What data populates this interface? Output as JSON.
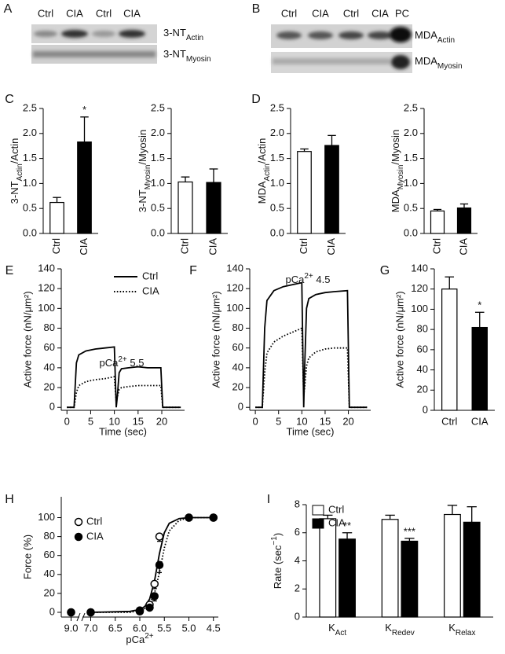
{
  "blots": [
    {
      "panel": "A",
      "lanes": [
        "Ctrl",
        "CIA",
        "Ctrl",
        "CIA"
      ],
      "rows": [
        [
          {
            "text": "3-NT"
          },
          {
            "text": "Actin",
            "shift": "sub"
          }
        ],
        [
          {
            "text": "3-NT"
          },
          {
            "text": "Myosin",
            "shift": "sub"
          }
        ]
      ]
    },
    {
      "panel": "B",
      "lanes": [
        "Ctrl",
        "CIA",
        "Ctrl",
        "CIA",
        "PC"
      ],
      "rows": [
        [
          {
            "text": "MDA"
          },
          {
            "text": "Actin",
            "shift": "sub"
          }
        ],
        [
          {
            "text": "MDA"
          },
          {
            "text": "Myosin",
            "shift": "sub"
          }
        ]
      ]
    }
  ],
  "chart_data": [
    {
      "type": "bar",
      "panel": "C",
      "ylabel": [
        {
          "text": "3-NT"
        },
        {
          "text": "Actin",
          "shift": "sub"
        },
        {
          "text": "/Actin"
        }
      ],
      "categories": [
        "Ctrl",
        "CIA"
      ],
      "values": [
        0.62,
        1.83
      ],
      "errors": [
        0.1,
        0.5
      ],
      "colors": [
        "#ffffff",
        "#000000"
      ],
      "annotations": [
        {
          "index": 1,
          "text": "*"
        }
      ],
      "ylim": [
        0,
        2.5
      ],
      "yticks": [
        {
          "value": 0,
          "label": "0.0"
        },
        0.5,
        {
          "value": 1,
          "label": "1.0"
        },
        1.5,
        {
          "value": 2,
          "label": "2.0"
        },
        2.5
      ]
    },
    {
      "type": "bar",
      "ylabel": [
        {
          "text": "3-NT"
        },
        {
          "text": "Myosin",
          "shift": "sub"
        },
        {
          "text": "/Myosin"
        }
      ],
      "categories": [
        "Ctrl",
        "CIA"
      ],
      "values": [
        1.03,
        1.02
      ],
      "errors": [
        0.1,
        0.27
      ],
      "colors": [
        "#ffffff",
        "#000000"
      ],
      "ylim": [
        0,
        2.5
      ],
      "yticks": [
        {
          "value": 0,
          "label": "0.0"
        },
        0.5,
        {
          "value": 1,
          "label": "1.0"
        },
        1.5,
        {
          "value": 2,
          "label": "2.0"
        },
        2.5
      ]
    },
    {
      "type": "bar",
      "panel": "D",
      "ylabel": [
        {
          "text": "MDA"
        },
        {
          "text": "Actin",
          "shift": "sub"
        },
        {
          "text": "/Actin"
        }
      ],
      "categories": [
        "Ctrl",
        "CIA"
      ],
      "values": [
        1.64,
        1.76
      ],
      "errors": [
        0.05,
        0.2
      ],
      "colors": [
        "#ffffff",
        "#000000"
      ],
      "ylim": [
        0,
        2.5
      ],
      "yticks": [
        {
          "value": 0,
          "label": "0.0"
        },
        0.5,
        {
          "value": 1,
          "label": "1.0"
        },
        1.5,
        {
          "value": 2,
          "label": "2.0"
        },
        2.5
      ]
    },
    {
      "type": "bar",
      "ylabel": [
        {
          "text": "MDA"
        },
        {
          "text": "Myosin",
          "shift": "sub"
        },
        {
          "text": "/Myosin"
        }
      ],
      "categories": [
        "Ctrl",
        "CIA"
      ],
      "values": [
        0.45,
        0.51
      ],
      "errors": [
        0.03,
        0.08
      ],
      "colors": [
        "#ffffff",
        "#000000"
      ],
      "ylim": [
        0,
        2.5
      ],
      "yticks": [
        {
          "value": 0,
          "label": "0.0"
        },
        0.5,
        {
          "value": 1,
          "label": "1.0"
        },
        1.5,
        {
          "value": 2,
          "label": "2.0"
        },
        2.5
      ]
    },
    {
      "type": "line",
      "panel": "E",
      "ylabel": "Active force (nN/μm²)",
      "xlabel": "Time (sec)",
      "annotation": [
        {
          "text": "pCa"
        },
        {
          "text": "2+",
          "shift": "super"
        },
        {
          "text": " 5.5"
        }
      ],
      "legend": true,
      "x": [
        0,
        1.5,
        2,
        2.5,
        4,
        6,
        8,
        10,
        10.4,
        10.6,
        11,
        11.5,
        13,
        15,
        17,
        19.8,
        20.2,
        22,
        24
      ],
      "series": [
        {
          "name": "Ctrl",
          "color": "#000000",
          "dash": "solid",
          "values": [
            0,
            0,
            45,
            53,
            57,
            59,
            60,
            61,
            0,
            10,
            35,
            39,
            40,
            41,
            40,
            40,
            0,
            0,
            0
          ]
        },
        {
          "name": "CIA",
          "color": "#000000",
          "dash": "dotted",
          "values": [
            0,
            0,
            15,
            22,
            26,
            28,
            29,
            31,
            5,
            10,
            18,
            20,
            21,
            22,
            22,
            22,
            0,
            0,
            0
          ]
        }
      ],
      "xlim": [
        -1.2,
        24.8
      ],
      "xticks": [
        0,
        5,
        10,
        15,
        20
      ],
      "ylim": [
        -3,
        140
      ],
      "yticks": [
        0,
        20,
        40,
        60,
        80,
        100,
        120,
        140
      ]
    },
    {
      "type": "line",
      "panel": "F",
      "ylabel": "Active force (nN/μm²)",
      "xlabel": "Time (sec)",
      "annotation": [
        {
          "text": "pCa"
        },
        {
          "text": "2+",
          "shift": "super"
        },
        {
          "text": " 4.5"
        }
      ],
      "x": [
        0,
        1.5,
        2,
        2.5,
        4,
        6,
        8,
        10,
        10.4,
        10.6,
        11,
        11.5,
        13,
        15,
        17,
        19.8,
        20.2,
        22,
        24
      ],
      "series": [
        {
          "color": "#000000",
          "dash": "solid",
          "values": [
            0,
            0,
            80,
            108,
            118,
            122,
            124,
            126,
            0,
            40,
            100,
            110,
            114,
            116,
            117,
            118,
            0,
            0,
            0
          ]
        },
        {
          "color": "#000000",
          "dash": "dotted",
          "values": [
            0,
            0,
            35,
            55,
            66,
            72,
            76,
            80,
            12,
            20,
            42,
            50,
            56,
            59,
            60,
            60,
            0,
            0,
            0
          ]
        }
      ],
      "xlim": [
        -1.2,
        24.8
      ],
      "xticks": [
        0,
        5,
        10,
        15,
        20
      ],
      "ylim": [
        -3,
        140
      ],
      "yticks": [
        0,
        20,
        40,
        60,
        80,
        100,
        120,
        140
      ]
    },
    {
      "type": "bar",
      "panel": "G",
      "ylabel": "Active force (nN/μm²)",
      "categories": [
        "Ctrl",
        "CIA"
      ],
      "values": [
        120,
        82
      ],
      "errors": [
        12,
        15
      ],
      "colors": [
        "#ffffff",
        "#000000"
      ],
      "annotations": [
        {
          "index": 1,
          "text": "*"
        }
      ],
      "ylim": [
        0,
        140
      ],
      "yticks": [
        0,
        20,
        40,
        60,
        80,
        100,
        120,
        140
      ]
    },
    {
      "type": "scatter",
      "panel": "H",
      "ylabel": "Force (%)",
      "xlabel": [
        {
          "text": "pCa"
        },
        {
          "text": "2+",
          "shift": "super"
        }
      ],
      "legend": true,
      "series": [
        {
          "name": "Ctrl",
          "color": "#000000",
          "marker": "open",
          "x": [
            9,
            7,
            6,
            5.8,
            5.7,
            5.6,
            5,
            4.5
          ],
          "values": [
            0,
            0,
            2,
            8,
            30,
            80,
            100,
            100
          ],
          "errors": [
            0,
            0,
            1,
            3,
            5,
            5,
            0,
            0
          ]
        },
        {
          "name": "CIA",
          "color": "#000000",
          "marker": "filled",
          "x": [
            9,
            7,
            6,
            5.8,
            5.7,
            5.6,
            5,
            4.5
          ],
          "values": [
            0,
            0,
            1,
            5,
            17,
            50,
            100,
            100
          ],
          "errors": [
            0,
            0,
            1,
            3,
            5,
            8,
            0,
            0
          ]
        }
      ],
      "fits": [
        {
          "dash": "solid",
          "x": [
            7,
            6.2,
            6,
            5.9,
            5.8,
            5.7,
            5.6,
            5.5,
            5.4,
            5.2,
            5,
            4.5
          ],
          "values": [
            0,
            1,
            3,
            6,
            14,
            33,
            62,
            84,
            94,
            99,
            100,
            100
          ]
        },
        {
          "dash": "dotted",
          "x": [
            7,
            6.2,
            6,
            5.9,
            5.8,
            5.7,
            5.6,
            5.5,
            5.4,
            5.2,
            5,
            4.5
          ],
          "values": [
            0,
            0,
            2,
            4,
            9,
            20,
            42,
            68,
            86,
            97,
            100,
            100
          ]
        }
      ],
      "xlim": [
        9.2,
        4.4
      ],
      "x_break": [
        8.8,
        7.2
      ],
      "xticks": [
        {
          "value": 9,
          "label": "9.0"
        },
        {
          "value": 7,
          "label": "7.0"
        },
        6.5,
        {
          "value": 6,
          "label": "6.0"
        },
        5.5,
        {
          "value": 5,
          "label": "5.0"
        },
        4.5
      ],
      "ylim": [
        -5,
        122
      ],
      "yticks": [
        0,
        20,
        40,
        60,
        80,
        100
      ]
    },
    {
      "type": "bar",
      "panel": "I",
      "ylabel": [
        {
          "text": "Rate (sec"
        },
        {
          "text": "−1",
          "shift": "super"
        },
        {
          "text": ")"
        }
      ],
      "legend": true,
      "categories": [
        [
          {
            "text": "K"
          },
          {
            "text": "Act",
            "shift": "sub"
          }
        ],
        [
          {
            "text": "K"
          },
          {
            "text": "Redev",
            "shift": "sub"
          }
        ],
        [
          {
            "text": "K"
          },
          {
            "text": "Relax",
            "shift": "sub"
          }
        ]
      ],
      "series": [
        {
          "name": "Ctrl",
          "color": "#ffffff",
          "values": [
            7.0,
            6.95,
            7.3
          ],
          "errors": [
            0.25,
            0.3,
            0.65
          ]
        },
        {
          "name": "CIA",
          "color": "#000000",
          "values": [
            5.55,
            5.4,
            6.75
          ],
          "errors": [
            0.45,
            0.2,
            1.1
          ],
          "annotations": [
            {
              "index": 0,
              "text": "**"
            },
            {
              "index": 1,
              "text": "***"
            }
          ]
        }
      ],
      "ylim": [
        0,
        8
      ],
      "yticks": [
        0,
        2,
        4,
        6,
        8
      ]
    }
  ]
}
